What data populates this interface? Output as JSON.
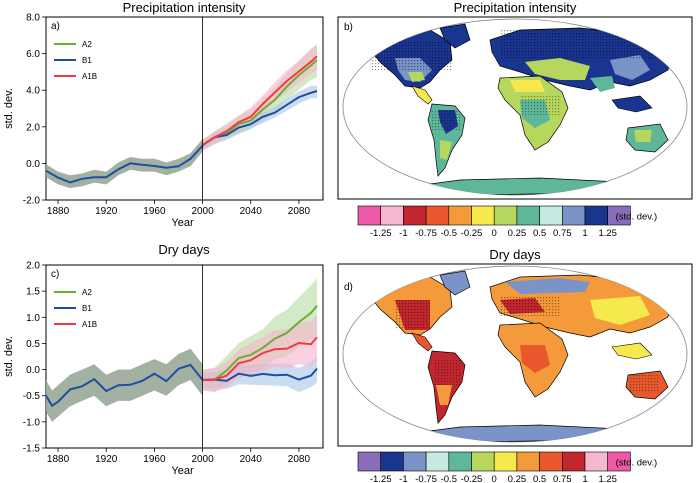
{
  "colors": {
    "A2": "#66b032",
    "B1": "#1f4fa0",
    "A1B": "#f23c3c",
    "A2_band": "#b8dca0",
    "B1_band": "#a8c4e6",
    "A1B_band": "#f7b3cc",
    "hist_band": "#98a898",
    "ocean": "#ffffff",
    "cb_precip": [
      "#ee5aa7",
      "#f6b6cf",
      "#c2262e",
      "#e8582c",
      "#f59a3a",
      "#f6e94e",
      "#b6d65d",
      "#5fb79a",
      "#c6e9e2",
      "#7a94c8",
      "#1a3590",
      "#8a6db8"
    ],
    "cb_dry": [
      "#8a6db8",
      "#1a3590",
      "#7a94c8",
      "#c6e9e2",
      "#5fb79a",
      "#b6d65d",
      "#f6e94e",
      "#f59a3a",
      "#e8582c",
      "#c2262e",
      "#f6b6cf",
      "#ee5aa7"
    ]
  },
  "chart_data": [
    {
      "type": "line",
      "panel": "a)",
      "title": "Precipitation intensity",
      "xlabel": "Year",
      "ylabel": "std. dev.",
      "xlim": [
        1870,
        2100
      ],
      "ylim": [
        -2,
        8
      ],
      "xticks": [
        1880,
        1920,
        1960,
        2000,
        2040,
        2080
      ],
      "xtick_labels": [
        "1880",
        "1920",
        "1960",
        "2000",
        "2040",
        "2080"
      ],
      "yticks": [
        -2,
        0,
        2,
        4,
        6,
        8
      ],
      "ytick_labels": [
        "-2.0",
        "0.0",
        "2.0",
        "4.0",
        "6.0",
        "8.0"
      ],
      "vline": 2000,
      "legend": [
        "A2",
        "B1",
        "A1B"
      ],
      "series": [
        {
          "name": "Historical",
          "x": [
            1870,
            1880,
            1890,
            1900,
            1910,
            1920,
            1930,
            1940,
            1950,
            1960,
            1970,
            1980,
            1990,
            2000
          ],
          "values": [
            -0.4,
            -0.8,
            -1.0,
            -0.9,
            -0.7,
            -0.8,
            -0.3,
            0.0,
            -0.1,
            -0.1,
            -0.3,
            -0.1,
            0.2,
            1.0
          ],
          "spread": 0.35
        },
        {
          "name": "A2",
          "x": [
            2000,
            2010,
            2020,
            2030,
            2040,
            2050,
            2060,
            2070,
            2080,
            2090,
            2095
          ],
          "values": [
            1.0,
            1.4,
            1.7,
            2.1,
            2.4,
            2.9,
            3.5,
            4.2,
            4.8,
            5.4,
            5.6
          ],
          "spread_start": 0.3,
          "spread_end": 0.9
        },
        {
          "name": "B1",
          "x": [
            2000,
            2010,
            2020,
            2030,
            2040,
            2050,
            2060,
            2070,
            2080,
            2090,
            2095
          ],
          "values": [
            1.0,
            1.4,
            1.6,
            1.9,
            2.2,
            2.5,
            2.8,
            3.2,
            3.6,
            3.9,
            3.9
          ],
          "spread_start": 0.25,
          "spread_end": 0.35
        },
        {
          "name": "A1B",
          "x": [
            2000,
            2010,
            2020,
            2030,
            2040,
            2050,
            2060,
            2070,
            2080,
            2090,
            2095
          ],
          "values": [
            1.0,
            1.4,
            1.8,
            2.2,
            2.6,
            3.2,
            3.9,
            4.5,
            5.0,
            5.6,
            5.8
          ],
          "spread_start": 0.3,
          "spread_end": 0.7
        }
      ]
    },
    {
      "type": "line",
      "panel": "c)",
      "title": "Dry days",
      "xlabel": "Year",
      "ylabel": "std. dev.",
      "xlim": [
        1870,
        2100
      ],
      "ylim": [
        -1.5,
        2.0
      ],
      "xticks": [
        1880,
        1920,
        1960,
        2000,
        2040,
        2080
      ],
      "xtick_labels": [
        "1880",
        "1920",
        "1960",
        "2000",
        "2040",
        "2080"
      ],
      "yticks": [
        -1.5,
        -1.0,
        -0.5,
        0.0,
        0.5,
        1.0,
        1.5,
        2.0
      ],
      "ytick_labels": [
        "-1.5",
        "-1.0",
        "-0.5",
        "0.0",
        "0.5",
        "1.0",
        "1.5",
        "2.0"
      ],
      "vline": 2000,
      "legend": [
        "A2",
        "B1",
        "A1B"
      ],
      "series": [
        {
          "name": "Historical",
          "x": [
            1870,
            1875,
            1880,
            1890,
            1900,
            1910,
            1920,
            1930,
            1940,
            1950,
            1960,
            1970,
            1980,
            1990,
            2000
          ],
          "values": [
            -0.5,
            -0.7,
            -0.6,
            -0.4,
            -0.3,
            -0.2,
            -0.4,
            -0.3,
            -0.3,
            -0.2,
            -0.1,
            -0.2,
            0.0,
            0.1,
            -0.2
          ],
          "spread": 0.3
        },
        {
          "name": "A2",
          "x": [
            2000,
            2010,
            2020,
            2030,
            2040,
            2050,
            2060,
            2070,
            2080,
            2090,
            2095
          ],
          "values": [
            -0.2,
            -0.2,
            0.0,
            0.2,
            0.3,
            0.4,
            0.6,
            0.7,
            0.9,
            1.1,
            1.2
          ],
          "spread_start": 0.2,
          "spread_end": 0.55
        },
        {
          "name": "B1",
          "x": [
            2000,
            2010,
            2020,
            2030,
            2040,
            2050,
            2060,
            2070,
            2080,
            2090,
            2095
          ],
          "values": [
            -0.2,
            -0.2,
            -0.2,
            -0.1,
            -0.1,
            -0.1,
            -0.1,
            -0.1,
            -0.2,
            -0.1,
            0.0
          ],
          "spread_start": 0.15,
          "spread_end": 0.25
        },
        {
          "name": "A1B",
          "x": [
            2000,
            2010,
            2020,
            2030,
            2040,
            2050,
            2060,
            2070,
            2080,
            2090,
            2095
          ],
          "values": [
            -0.2,
            -0.2,
            -0.1,
            0.1,
            0.2,
            0.3,
            0.4,
            0.4,
            0.5,
            0.5,
            0.6
          ],
          "spread_start": 0.2,
          "spread_end": 0.45
        }
      ]
    },
    {
      "type": "heatmap",
      "panel": "b)",
      "title": "Precipitation intensity",
      "colorbar_labels": [
        "-1.25",
        "-1",
        "-0.75",
        "-0.5",
        "-0.25",
        "0",
        "0.25",
        "0.5",
        "0.75",
        "1",
        "1.25"
      ],
      "colorbar_unit": "(std. dev.)"
    },
    {
      "type": "heatmap",
      "panel": "d)",
      "title": "Dry days",
      "colorbar_labels": [
        "-1.25",
        "-1",
        "-0.75",
        "-0.5",
        "-0.25",
        "0",
        "0.25",
        "0.5",
        "0.75",
        "1",
        "1.25"
      ],
      "colorbar_unit": "(std. dev.)"
    }
  ]
}
